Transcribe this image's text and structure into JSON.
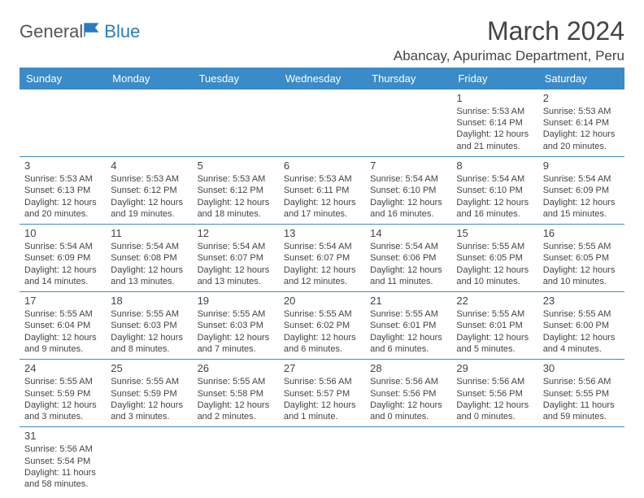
{
  "logo": {
    "text1": "General",
    "text2": "Blue"
  },
  "title": "March 2024",
  "location": "Abancay, Apurimac Department, Peru",
  "colors": {
    "header_bg": "#3b8bc8",
    "header_text": "#ffffff",
    "border": "#3b8bc8",
    "text": "#444444",
    "logo_gray": "#555555",
    "logo_blue": "#2b7bbf"
  },
  "day_headers": [
    "Sunday",
    "Monday",
    "Tuesday",
    "Wednesday",
    "Thursday",
    "Friday",
    "Saturday"
  ],
  "weeks": [
    [
      null,
      null,
      null,
      null,
      null,
      {
        "n": "1",
        "sr": "Sunrise: 5:53 AM",
        "ss": "Sunset: 6:14 PM",
        "d1": "Daylight: 12 hours",
        "d2": "and 21 minutes."
      },
      {
        "n": "2",
        "sr": "Sunrise: 5:53 AM",
        "ss": "Sunset: 6:14 PM",
        "d1": "Daylight: 12 hours",
        "d2": "and 20 minutes."
      }
    ],
    [
      {
        "n": "3",
        "sr": "Sunrise: 5:53 AM",
        "ss": "Sunset: 6:13 PM",
        "d1": "Daylight: 12 hours",
        "d2": "and 20 minutes."
      },
      {
        "n": "4",
        "sr": "Sunrise: 5:53 AM",
        "ss": "Sunset: 6:12 PM",
        "d1": "Daylight: 12 hours",
        "d2": "and 19 minutes."
      },
      {
        "n": "5",
        "sr": "Sunrise: 5:53 AM",
        "ss": "Sunset: 6:12 PM",
        "d1": "Daylight: 12 hours",
        "d2": "and 18 minutes."
      },
      {
        "n": "6",
        "sr": "Sunrise: 5:53 AM",
        "ss": "Sunset: 6:11 PM",
        "d1": "Daylight: 12 hours",
        "d2": "and 17 minutes."
      },
      {
        "n": "7",
        "sr": "Sunrise: 5:54 AM",
        "ss": "Sunset: 6:10 PM",
        "d1": "Daylight: 12 hours",
        "d2": "and 16 minutes."
      },
      {
        "n": "8",
        "sr": "Sunrise: 5:54 AM",
        "ss": "Sunset: 6:10 PM",
        "d1": "Daylight: 12 hours",
        "d2": "and 16 minutes."
      },
      {
        "n": "9",
        "sr": "Sunrise: 5:54 AM",
        "ss": "Sunset: 6:09 PM",
        "d1": "Daylight: 12 hours",
        "d2": "and 15 minutes."
      }
    ],
    [
      {
        "n": "10",
        "sr": "Sunrise: 5:54 AM",
        "ss": "Sunset: 6:09 PM",
        "d1": "Daylight: 12 hours",
        "d2": "and 14 minutes."
      },
      {
        "n": "11",
        "sr": "Sunrise: 5:54 AM",
        "ss": "Sunset: 6:08 PM",
        "d1": "Daylight: 12 hours",
        "d2": "and 13 minutes."
      },
      {
        "n": "12",
        "sr": "Sunrise: 5:54 AM",
        "ss": "Sunset: 6:07 PM",
        "d1": "Daylight: 12 hours",
        "d2": "and 13 minutes."
      },
      {
        "n": "13",
        "sr": "Sunrise: 5:54 AM",
        "ss": "Sunset: 6:07 PM",
        "d1": "Daylight: 12 hours",
        "d2": "and 12 minutes."
      },
      {
        "n": "14",
        "sr": "Sunrise: 5:54 AM",
        "ss": "Sunset: 6:06 PM",
        "d1": "Daylight: 12 hours",
        "d2": "and 11 minutes."
      },
      {
        "n": "15",
        "sr": "Sunrise: 5:55 AM",
        "ss": "Sunset: 6:05 PM",
        "d1": "Daylight: 12 hours",
        "d2": "and 10 minutes."
      },
      {
        "n": "16",
        "sr": "Sunrise: 5:55 AM",
        "ss": "Sunset: 6:05 PM",
        "d1": "Daylight: 12 hours",
        "d2": "and 10 minutes."
      }
    ],
    [
      {
        "n": "17",
        "sr": "Sunrise: 5:55 AM",
        "ss": "Sunset: 6:04 PM",
        "d1": "Daylight: 12 hours",
        "d2": "and 9 minutes."
      },
      {
        "n": "18",
        "sr": "Sunrise: 5:55 AM",
        "ss": "Sunset: 6:03 PM",
        "d1": "Daylight: 12 hours",
        "d2": "and 8 minutes."
      },
      {
        "n": "19",
        "sr": "Sunrise: 5:55 AM",
        "ss": "Sunset: 6:03 PM",
        "d1": "Daylight: 12 hours",
        "d2": "and 7 minutes."
      },
      {
        "n": "20",
        "sr": "Sunrise: 5:55 AM",
        "ss": "Sunset: 6:02 PM",
        "d1": "Daylight: 12 hours",
        "d2": "and 6 minutes."
      },
      {
        "n": "21",
        "sr": "Sunrise: 5:55 AM",
        "ss": "Sunset: 6:01 PM",
        "d1": "Daylight: 12 hours",
        "d2": "and 6 minutes."
      },
      {
        "n": "22",
        "sr": "Sunrise: 5:55 AM",
        "ss": "Sunset: 6:01 PM",
        "d1": "Daylight: 12 hours",
        "d2": "and 5 minutes."
      },
      {
        "n": "23",
        "sr": "Sunrise: 5:55 AM",
        "ss": "Sunset: 6:00 PM",
        "d1": "Daylight: 12 hours",
        "d2": "and 4 minutes."
      }
    ],
    [
      {
        "n": "24",
        "sr": "Sunrise: 5:55 AM",
        "ss": "Sunset: 5:59 PM",
        "d1": "Daylight: 12 hours",
        "d2": "and 3 minutes."
      },
      {
        "n": "25",
        "sr": "Sunrise: 5:55 AM",
        "ss": "Sunset: 5:59 PM",
        "d1": "Daylight: 12 hours",
        "d2": "and 3 minutes."
      },
      {
        "n": "26",
        "sr": "Sunrise: 5:55 AM",
        "ss": "Sunset: 5:58 PM",
        "d1": "Daylight: 12 hours",
        "d2": "and 2 minutes."
      },
      {
        "n": "27",
        "sr": "Sunrise: 5:56 AM",
        "ss": "Sunset: 5:57 PM",
        "d1": "Daylight: 12 hours",
        "d2": "and 1 minute."
      },
      {
        "n": "28",
        "sr": "Sunrise: 5:56 AM",
        "ss": "Sunset: 5:56 PM",
        "d1": "Daylight: 12 hours",
        "d2": "and 0 minutes."
      },
      {
        "n": "29",
        "sr": "Sunrise: 5:56 AM",
        "ss": "Sunset: 5:56 PM",
        "d1": "Daylight: 12 hours",
        "d2": "and 0 minutes."
      },
      {
        "n": "30",
        "sr": "Sunrise: 5:56 AM",
        "ss": "Sunset: 5:55 PM",
        "d1": "Daylight: 11 hours",
        "d2": "and 59 minutes."
      }
    ],
    [
      {
        "n": "31",
        "sr": "Sunrise: 5:56 AM",
        "ss": "Sunset: 5:54 PM",
        "d1": "Daylight: 11 hours",
        "d2": "and 58 minutes."
      },
      null,
      null,
      null,
      null,
      null,
      null
    ]
  ]
}
